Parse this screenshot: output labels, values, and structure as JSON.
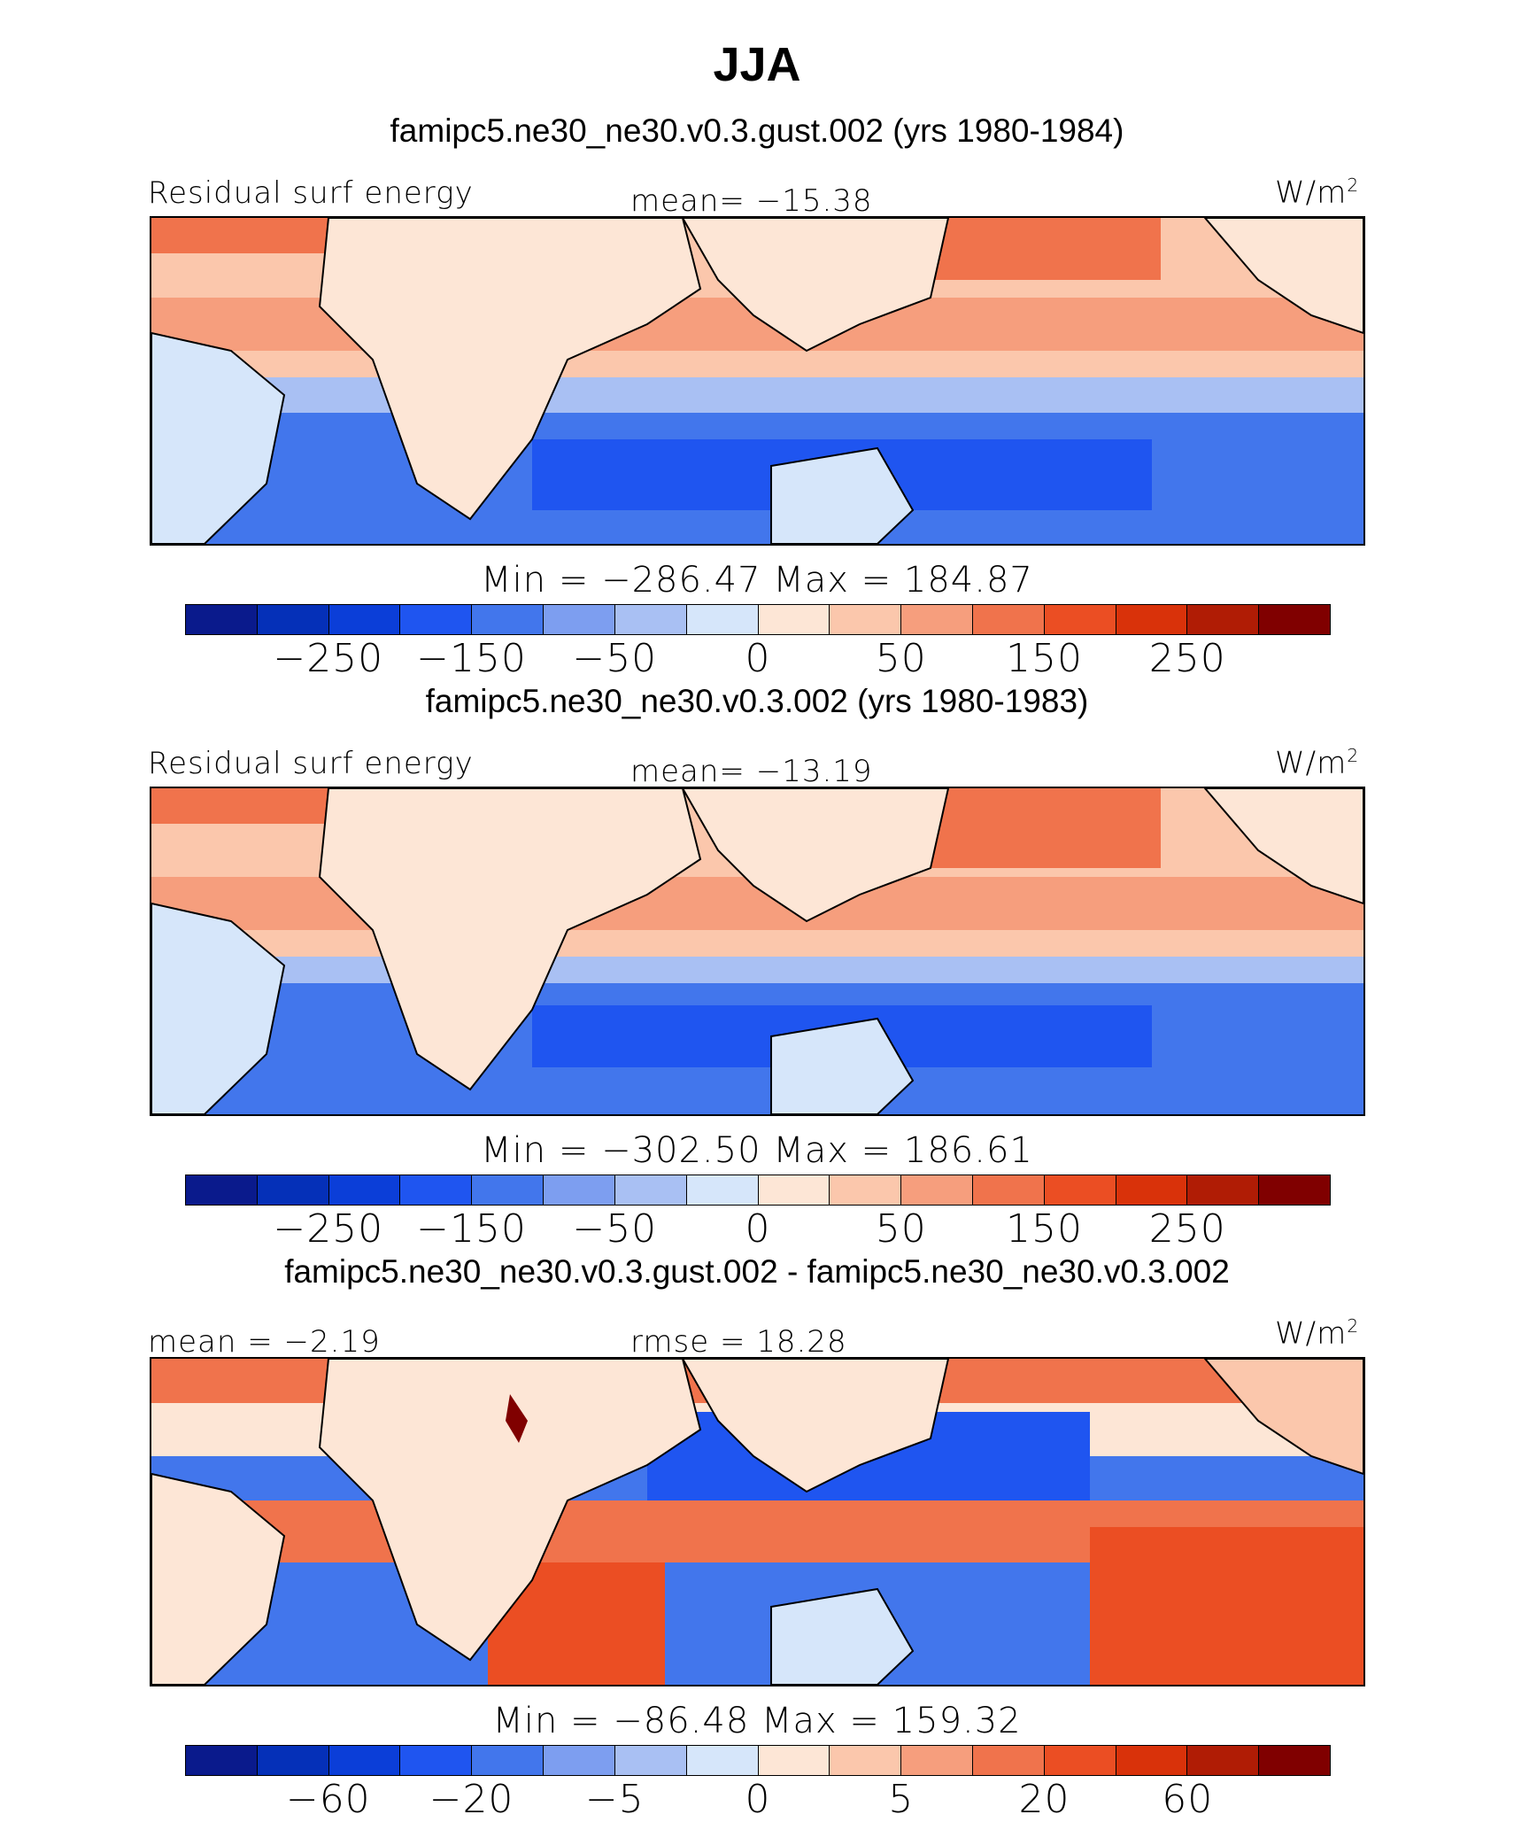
{
  "main_title": "JJA",
  "colors": [
    "#0a1a8c",
    "#0530b8",
    "#0b3ed8",
    "#1f55f0",
    "#4276ec",
    "#7d9ef0",
    "#a9c0f3",
    "#d6e6fa",
    "#fde6d6",
    "#fbc7ac",
    "#f69e7d",
    "#f0734c",
    "#eb4e23",
    "#d9320a",
    "#b01c05",
    "#800000"
  ],
  "chart_data": [
    {
      "type": "heatmap",
      "title": "famipc5.ne30_ne30.v0.3.gust.002 (yrs 1980-1984)",
      "left_label": "Residual surf energy",
      "center_label": "mean=  −15.38",
      "units_label": "W/m",
      "units_sup": "2",
      "minmax": "Min  =  −286.47  Max  =  184.87",
      "colorbar_ticks": [
        "−250",
        "−150",
        "−50",
        "0",
        "50",
        "150",
        "250"
      ],
      "mean": -15.38,
      "min": -286.47,
      "max": 184.87
    },
    {
      "type": "heatmap",
      "title": "famipc5.ne30_ne30.v0.3.002 (yrs 1980-1983)",
      "left_label": "Residual surf energy",
      "center_label": "mean=  −13.19",
      "units_label": "W/m",
      "units_sup": "2",
      "minmax": "Min  =  −302.50  Max  =  186.61",
      "colorbar_ticks": [
        "−250",
        "−150",
        "−50",
        "0",
        "50",
        "150",
        "250"
      ],
      "mean": -13.19,
      "min": -302.5,
      "max": 186.61
    },
    {
      "type": "heatmap",
      "title": "famipc5.ne30_ne30.v0.3.gust.002 - famipc5.ne30_ne30.v0.3.002",
      "left_label": "mean  =   −2.19",
      "center_label": "rmse  =   18.28",
      "units_label": "W/m",
      "units_sup": "2",
      "minmax": "Min  =  −86.48  Max  =  159.32",
      "colorbar_ticks": [
        "−60",
        "−20",
        "−5",
        "0",
        "5",
        "20",
        "60"
      ],
      "mean": -2.19,
      "rmse": 18.28,
      "min": -86.48,
      "max": 159.32
    }
  ]
}
